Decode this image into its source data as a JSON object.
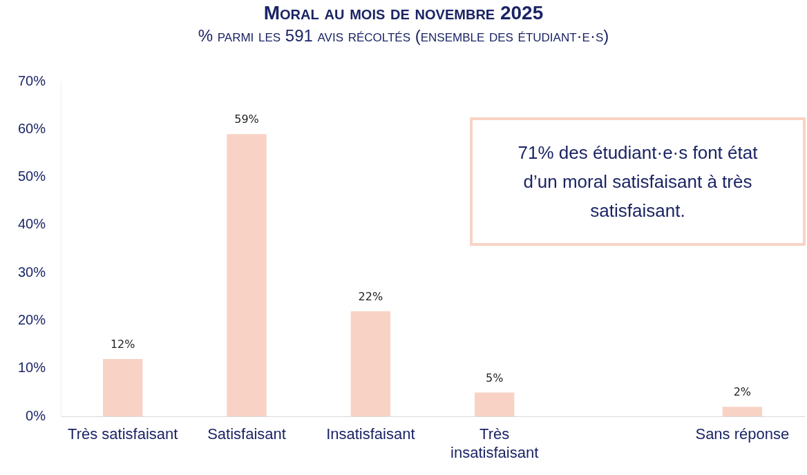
{
  "chart_data": {
    "type": "bar",
    "title": "Moral au mois de novembre 2025",
    "subtitle": "% parmi les 591 avis récoltés (ensemble des étudiant·e·s)",
    "categories": [
      "Très satisfaisant",
      "Satisfaisant",
      "Insatisfaisant",
      "Très insatisfaisant",
      null,
      "Sans réponse"
    ],
    "values": [
      12,
      59,
      22,
      5,
      null,
      2
    ],
    "value_labels": [
      "12%",
      "59%",
      "22%",
      "5%",
      null,
      "2%"
    ],
    "color": "#f8d3c5",
    "ylim": [
      0,
      70
    ],
    "yticks": [
      {
        "value": 0,
        "label": "0%"
      },
      {
        "value": 10,
        "label": "10%"
      },
      {
        "value": 20,
        "label": "20%"
      },
      {
        "value": 30,
        "label": "30%"
      },
      {
        "value": 40,
        "label": "40%"
      },
      {
        "value": 50,
        "label": "50%"
      },
      {
        "value": 60,
        "label": "60%"
      },
      {
        "value": 70,
        "label": "70%"
      }
    ],
    "grid": false,
    "legend": false,
    "annotations": [
      "71% des étudiant·e·s font état d’un moral satisfaisant à très satisfaisant."
    ]
  }
}
